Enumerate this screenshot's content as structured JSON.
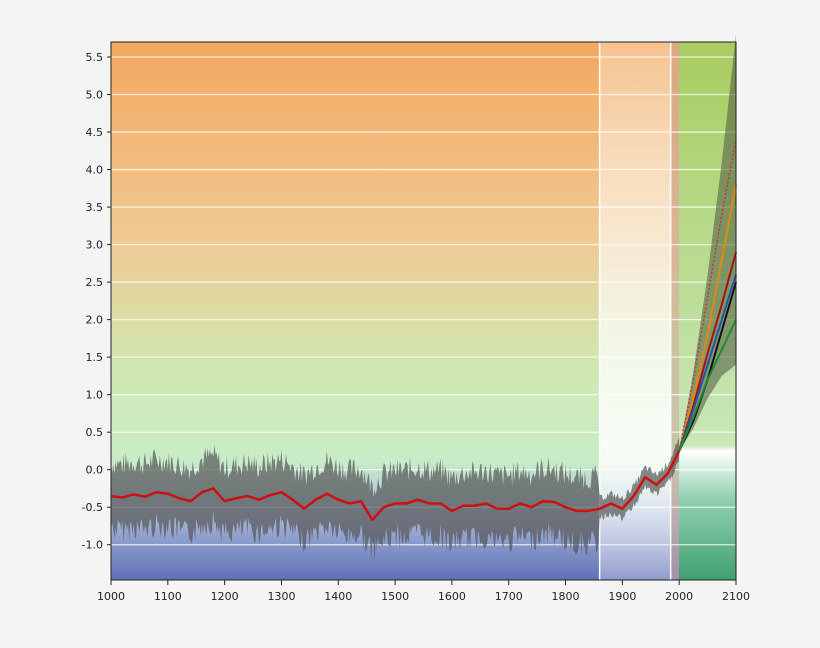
{
  "chart_data": {
    "type": "line",
    "title": "",
    "xlabel": "",
    "ylabel": "",
    "xlim": [
      1000,
      2100
    ],
    "ylim": [
      -1.47,
      5.7
    ],
    "grid": true,
    "x_ticks": [
      "1000",
      "1100",
      "1200",
      "1300",
      "1400",
      "1500",
      "1600",
      "1700",
      "1800",
      "1900",
      "2000",
      "2100"
    ],
    "y_ticks": [
      "-1.0",
      "-0.5",
      "0.0",
      "0.5",
      "1.0",
      "1.5",
      "2.0",
      "2.5",
      "3.0",
      "3.5",
      "4.0",
      "4.5",
      "5.0",
      "5.5"
    ],
    "shaded_periods": [
      {
        "from": 1860,
        "to": 1985,
        "color": "#ffffff"
      },
      {
        "from": 1985,
        "to": 2000,
        "color": "#c8a898"
      },
      {
        "from": 2000,
        "to": 2100,
        "color": "#a8d070"
      }
    ],
    "reconstruction": {
      "color": "#cc1111",
      "x": [
        1000,
        1020,
        1040,
        1060,
        1080,
        1100,
        1120,
        1140,
        1160,
        1180,
        1200,
        1220,
        1240,
        1260,
        1280,
        1300,
        1320,
        1340,
        1360,
        1380,
        1400,
        1420,
        1440,
        1460,
        1480,
        1500,
        1520,
        1540,
        1560,
        1580,
        1600,
        1620,
        1640,
        1660,
        1680,
        1700,
        1720,
        1740,
        1760,
        1780,
        1800,
        1820,
        1840,
        1860,
        1880,
        1900,
        1920,
        1940,
        1960,
        1980,
        2000
      ],
      "y": [
        -0.35,
        -0.37,
        -0.33,
        -0.36,
        -0.3,
        -0.32,
        -0.38,
        -0.42,
        -0.3,
        -0.25,
        -0.42,
        -0.38,
        -0.35,
        -0.4,
        -0.34,
        -0.3,
        -0.4,
        -0.52,
        -0.4,
        -0.32,
        -0.4,
        -0.45,
        -0.42,
        -0.67,
        -0.5,
        -0.45,
        -0.45,
        -0.4,
        -0.45,
        -0.45,
        -0.55,
        -0.48,
        -0.48,
        -0.45,
        -0.52,
        -0.52,
        -0.45,
        -0.5,
        -0.42,
        -0.43,
        -0.5,
        -0.55,
        -0.55,
        -0.52,
        -0.45,
        -0.52,
        -0.35,
        -0.1,
        -0.2,
        -0.05,
        0.25
      ],
      "uncertainty": 0.55,
      "uncertainty_color": "#555555"
    },
    "projection_envelope": {
      "x": [
        2000,
        2025,
        2050,
        2075,
        2100
      ],
      "upper": [
        0.25,
        1.3,
        2.6,
        4.1,
        5.8
      ],
      "lower": [
        0.25,
        0.55,
        0.95,
        1.25,
        1.4
      ],
      "color": "#4a5a40"
    },
    "series": [
      {
        "color": "#cc3333",
        "dashed": true,
        "x": [
          2000,
          2025,
          2050,
          2075,
          2100
        ],
        "y": [
          0.25,
          1.2,
          2.3,
          3.4,
          4.4
        ]
      },
      {
        "color": "#e08a10",
        "x": [
          2000,
          2025,
          2050,
          2075,
          2100
        ],
        "y": [
          0.25,
          0.95,
          1.8,
          2.8,
          3.8
        ]
      },
      {
        "color": "#aa1111",
        "x": [
          2000,
          2025,
          2050,
          2075,
          2100
        ],
        "y": [
          0.25,
          0.85,
          1.55,
          2.2,
          2.9
        ]
      },
      {
        "color": "#2255aa",
        "x": [
          2000,
          2025,
          2050,
          2075,
          2100
        ],
        "y": [
          0.25,
          0.8,
          1.4,
          2.0,
          2.6
        ]
      },
      {
        "color": "#111111",
        "x": [
          2000,
          2025,
          2050,
          2075,
          2100
        ],
        "y": [
          0.25,
          0.65,
          1.2,
          1.85,
          2.5
        ]
      },
      {
        "color": "#228833",
        "x": [
          2000,
          2025,
          2050,
          2075,
          2100
        ],
        "y": [
          0.25,
          0.7,
          1.2,
          1.6,
          2.0
        ]
      }
    ]
  }
}
